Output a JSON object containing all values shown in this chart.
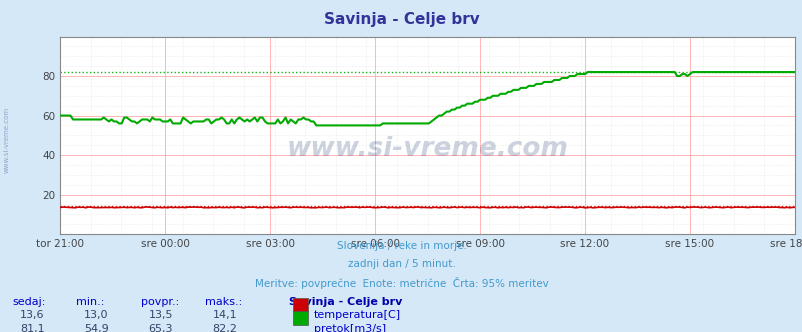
{
  "title": "Savinja - Celje brv",
  "bg_color": "#d4e8f8",
  "plot_bg_color": "#ffffff",
  "grid_color_major": "#ffaaaa",
  "grid_color_minor": "#dddddd",
  "x_labels": [
    "tor 21:00",
    "sre 00:00",
    "sre 03:00",
    "sre 06:00",
    "sre 09:00",
    "sre 12:00",
    "sre 15:00",
    "sre 18:00"
  ],
  "x_ticks_norm": [
    0.0,
    0.142857,
    0.285714,
    0.428571,
    0.571429,
    0.714286,
    0.857143,
    1.0
  ],
  "ylim": [
    0,
    100
  ],
  "yticks": [
    20,
    40,
    60,
    80
  ],
  "temp_color": "#cc0000",
  "flow_color": "#00aa00",
  "subtitle1": "Slovenija / reke in morje.",
  "subtitle2": "zadnji dan / 5 minut.",
  "subtitle3": "Meritve: povprečne  Enote: metrične  Črta: 95% meritev",
  "subtitle_color": "#4499cc",
  "footer_label_color": "#0000cc",
  "footer_value_color": "#334466",
  "footer_title_color": "#0000aa",
  "sedaj_label": "sedaj:",
  "min_label": "min.:",
  "povpr_label": "povpr.:",
  "maks_label": "maks.:",
  "station_label": "Savinja - Celje brv",
  "temp_row": [
    "13,6",
    "13,0",
    "13,5",
    "14,1"
  ],
  "flow_row": [
    "81,1",
    "54,9",
    "65,3",
    "82,2"
  ],
  "temp_legend": "temperatura[C]",
  "flow_legend": "pretok[m3/s]",
  "temp_max": 14.1,
  "flow_max": 82.2,
  "watermark": "www.si-vreme.com",
  "n_points": 288
}
